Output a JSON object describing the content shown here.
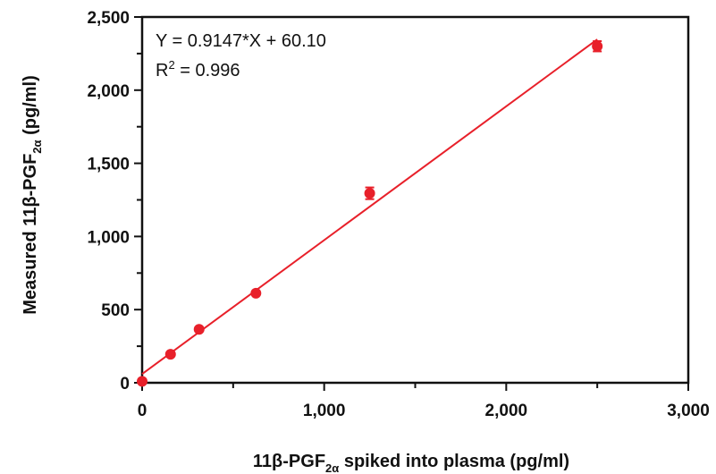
{
  "chart_data": {
    "type": "scatter",
    "xlim": [
      0,
      3000
    ],
    "ylim": [
      0,
      2500
    ],
    "x_ticks": [
      0,
      1000,
      2000,
      3000
    ],
    "x_tick_labels": [
      "0",
      "1,000",
      "2,000",
      "3,000"
    ],
    "y_ticks": [
      0,
      500,
      1000,
      1500,
      2000,
      2500
    ],
    "y_tick_labels": [
      "0",
      "500",
      "1,000",
      "1,500",
      "2,000",
      "2,500"
    ],
    "xlabel": {
      "main": "11β-PGF",
      "sub": "2α",
      "rest": " spiked into plasma (pg/ml)"
    },
    "ylabel": {
      "main": "Measured 11β-PGF",
      "sub": "2α",
      "rest": " (pg/ml)"
    },
    "grid": false,
    "legend": "none",
    "marker_color": "#e8202a",
    "line_color": "#e8202a",
    "points": [
      {
        "x": 0,
        "y": 10,
        "err": 0
      },
      {
        "x": 156,
        "y": 195,
        "err": 0
      },
      {
        "x": 313,
        "y": 365,
        "err": 0
      },
      {
        "x": 625,
        "y": 612,
        "err": 0
      },
      {
        "x": 1250,
        "y": 1295,
        "err": 40
      },
      {
        "x": 2500,
        "y": 2300,
        "err": 35
      }
    ],
    "fit": {
      "slope": 0.9147,
      "intercept": 60.1,
      "x_range": [
        0,
        2500
      ]
    },
    "annotation": {
      "equation": "Y = 0.9147*X + 60.10",
      "r2_prefix": "R",
      "r2_sup": "2",
      "r2_value": " = 0.996"
    }
  }
}
